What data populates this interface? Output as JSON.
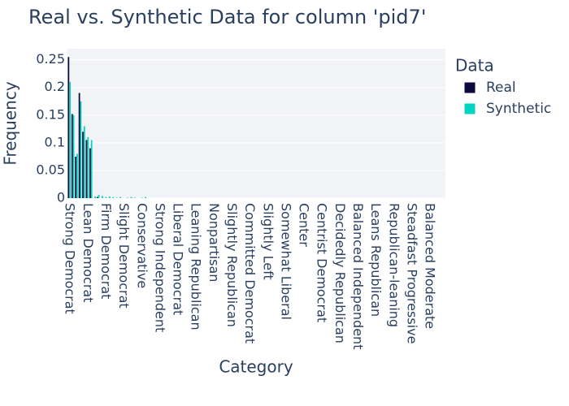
{
  "chart_data": {
    "type": "bar",
    "title": "Real vs. Synthetic Data for column 'pid7'",
    "x_label": "Category",
    "y_label": "Frequency",
    "legend_title": "Data",
    "categories": [
      "Strong Democrat",
      null,
      null,
      null,
      null,
      "Lean Democrat",
      null,
      null,
      null,
      null,
      "Firm Democrat",
      null,
      null,
      null,
      null,
      "Slight Democrat",
      null,
      null,
      null,
      null,
      "Conservative",
      null,
      null,
      null,
      null,
      "Strong Independent",
      null,
      null,
      null,
      null,
      "Liberal Democrat",
      null,
      null,
      null,
      null,
      "Leaning Republican",
      null,
      null,
      null,
      null,
      "Nonpartisan",
      null,
      null,
      null,
      null,
      "Slightly Republican",
      null,
      null,
      null,
      null,
      "Committed Democrat",
      null,
      null,
      null,
      null,
      "Slightly Left",
      null,
      null,
      null,
      null,
      "Somewhat Liberal",
      null,
      null,
      null,
      null,
      "Center",
      null,
      null,
      null,
      null,
      "Centrist Democrat",
      null,
      null,
      null,
      null,
      "Decidedly Republican",
      null,
      null,
      null,
      null,
      "Balanced Independent",
      null,
      null,
      null,
      null,
      "Leans Republican",
      null,
      null,
      null,
      null,
      "Republican-leaning",
      null,
      null,
      null,
      null,
      "Steadfast Progressive",
      null,
      null,
      null,
      null,
      "Balanced Moderate",
      null,
      null,
      null,
      null
    ],
    "series": [
      {
        "name": "Real",
        "color": "#0b0a3c",
        "values": [
          0.255,
          0.152,
          0.075,
          0.19,
          0.12,
          0.105,
          0.09,
          0,
          0.002,
          0,
          0,
          0,
          0,
          0,
          0,
          0,
          0,
          0,
          0,
          0,
          0,
          0,
          0,
          0,
          0,
          0,
          0,
          0,
          0,
          0,
          0,
          0,
          0,
          0,
          0,
          0,
          0,
          0,
          0,
          0,
          0,
          0,
          0,
          0,
          0,
          0,
          0,
          0,
          0,
          0,
          0,
          0,
          0,
          0,
          0,
          0,
          0,
          0,
          0,
          0,
          0,
          0,
          0,
          0,
          0,
          0,
          0,
          0,
          0,
          0,
          0,
          0,
          0,
          0,
          0,
          0,
          0,
          0,
          0,
          0,
          0,
          0,
          0,
          0,
          0,
          0,
          0,
          0,
          0,
          0,
          0,
          0,
          0,
          0,
          0,
          0,
          0,
          0,
          0,
          0,
          0,
          0,
          0,
          0,
          0
        ]
      },
      {
        "name": "Synthetic",
        "color": "#00d4c0",
        "values": [
          0.21,
          0.15,
          0.08,
          0.175,
          0.13,
          0.11,
          0.105,
          0.003,
          0.006,
          0.004,
          0.002,
          0.003,
          0.002,
          0.001,
          0.002,
          0,
          0.001,
          0.002,
          0.001,
          0,
          0.001,
          0.002,
          0,
          0,
          0,
          0,
          0,
          0,
          0,
          0,
          0,
          0,
          0,
          0,
          0,
          0,
          0,
          0,
          0,
          0,
          0,
          0,
          0,
          0,
          0,
          0,
          0,
          0,
          0,
          0,
          0,
          0,
          0,
          0,
          0,
          0,
          0,
          0,
          0,
          0,
          0,
          0,
          0,
          0,
          0,
          0,
          0,
          0,
          0,
          0,
          0,
          0,
          0,
          0,
          0,
          0,
          0,
          0,
          0,
          0,
          0,
          0,
          0,
          0,
          0,
          0,
          0,
          0,
          0,
          0,
          0,
          0,
          0,
          0,
          0,
          0,
          0,
          0,
          0,
          0,
          0,
          0,
          0,
          0,
          0
        ]
      }
    ],
    "ylim": [
      0,
      0.27
    ],
    "yticks": [
      0,
      0.05,
      0.1,
      0.15,
      0.2,
      0.25
    ],
    "grid": true
  }
}
